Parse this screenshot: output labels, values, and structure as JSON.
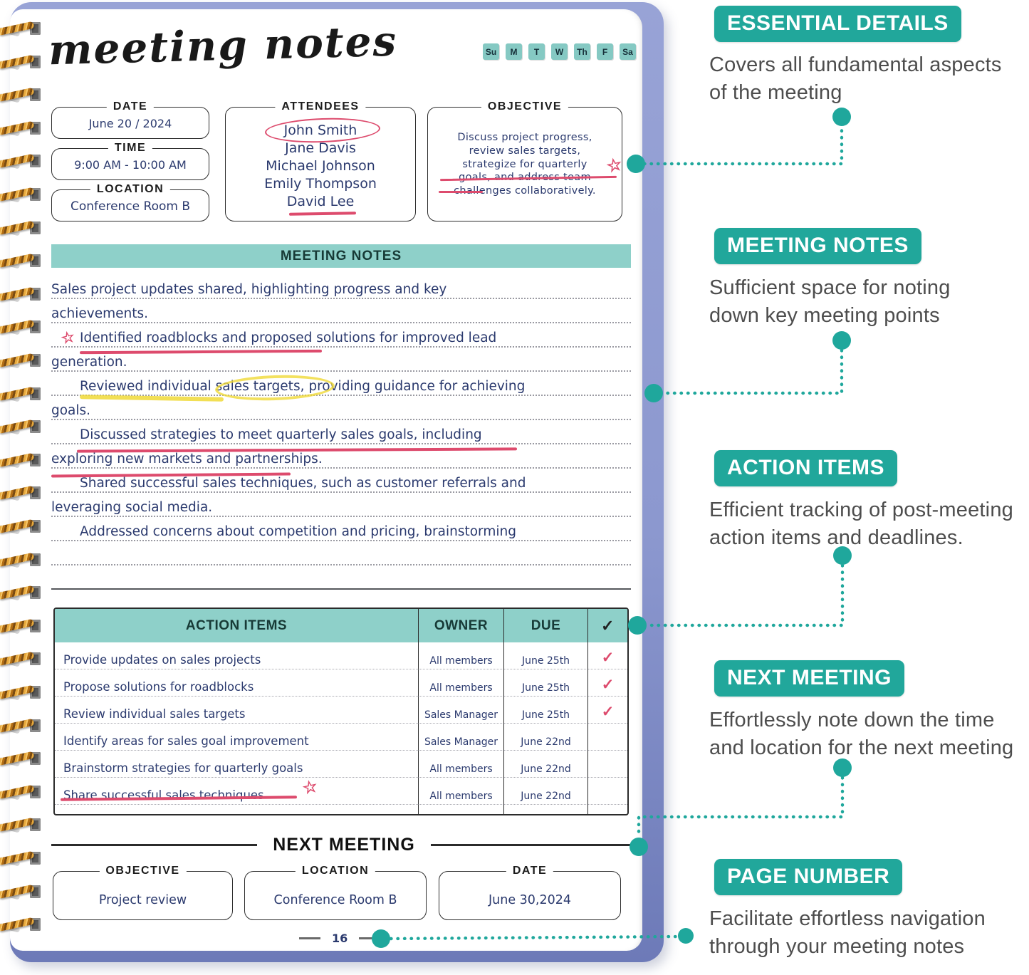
{
  "notebook": {
    "title": "meeting notes",
    "week_days": [
      "Su",
      "M",
      "T",
      "W",
      "Th",
      "F",
      "Sa"
    ],
    "info_fields": [
      {
        "label": "DATE",
        "value": "June 20 / 2024"
      },
      {
        "label": "TIME",
        "value": "9:00 AM - 10:00 AM"
      },
      {
        "label": "LOCATION",
        "value": "Conference Room B"
      }
    ],
    "attendees": {
      "label": "ATTENDEES",
      "names": [
        "John Smith",
        "Jane Davis",
        "Michael Johnson",
        "Emily Thompson",
        "David Lee"
      ]
    },
    "objective": {
      "label": "OBJECTIVE",
      "lines": [
        "Discuss project progress,",
        "review sales targets,",
        "strategize for quarterly",
        "goals, and address team",
        "challenges collaboratively."
      ]
    },
    "notes": {
      "header": "MEETING NOTES",
      "lines": [
        "Sales project updates shared, highlighting progress and key",
        "achievements.",
        "Identified roadblocks and proposed solutions for improved lead",
        "generation.",
        "Reviewed individual sales targets, providing guidance for achieving",
        "goals.",
        "Discussed strategies to meet quarterly sales goals, including",
        "exploring new markets and partnerships.",
        "Shared successful sales techniques, such as customer referrals and",
        "leveraging social media.",
        "Addressed concerns about competition and pricing, brainstorming",
        ""
      ]
    },
    "action_items": {
      "headers": [
        "ACTION ITEMS",
        "OWNER",
        "DUE",
        "✓"
      ],
      "rows": [
        {
          "item": "Provide updates on sales projects",
          "owner": "All members",
          "due": "June 25th",
          "check": "✓"
        },
        {
          "item": "Propose solutions for roadblocks",
          "owner": "All members",
          "due": "June 25th",
          "check": "✓"
        },
        {
          "item": "Review individual sales targets",
          "owner": "Sales Manager",
          "due": "June 25th",
          "check": "✓"
        },
        {
          "item": "Identify areas for sales goal improvement",
          "owner": "Sales Manager",
          "due": "June 22nd",
          "check": ""
        },
        {
          "item": "Brainstorm strategies for quarterly goals",
          "owner": "All members",
          "due": "June 22nd",
          "check": ""
        },
        {
          "item": "Share successful sales techniques",
          "owner": "All members",
          "due": "June 22nd",
          "check": ""
        }
      ]
    },
    "next_meeting": {
      "header": "NEXT MEETING",
      "fields": [
        {
          "label": "OBJECTIVE",
          "value": "Project review"
        },
        {
          "label": "LOCATION",
          "value": "Conference Room B"
        },
        {
          "label": "DATE",
          "value": "June 30,2024"
        }
      ]
    },
    "page_number": "16",
    "doodles": {
      "star": "☆"
    }
  },
  "callouts": [
    {
      "title": "ESSENTIAL DETAILS",
      "body_line1": "Covers all fundamental aspects",
      "body_line2": "of the meeting"
    },
    {
      "title": "MEETING NOTES",
      "body_line1": "Sufficient space for noting",
      "body_line2": "down key meeting points"
    },
    {
      "title": "ACTION ITEMS",
      "body_line1": "Efficient tracking of post-meeting",
      "body_line2": "action items and deadlines."
    },
    {
      "title": "NEXT MEETING",
      "body_line1": "Effortlessly note down the time",
      "body_line2": "and location for the next meeting"
    },
    {
      "title": "PAGE NUMBER",
      "body_line1": "Facilitate effortless navigation",
      "body_line2": "through your meeting notes"
    }
  ],
  "colors": {
    "accent_teal": "#21a79b",
    "light_teal": "#8ed0c9",
    "ink_navy": "#2b3a6e",
    "annotation_red": "#dd4b6d",
    "highlight_yellow": "#f0d937",
    "cover_purple": "#8c98cf",
    "connector_teal": "#1fa79c"
  }
}
